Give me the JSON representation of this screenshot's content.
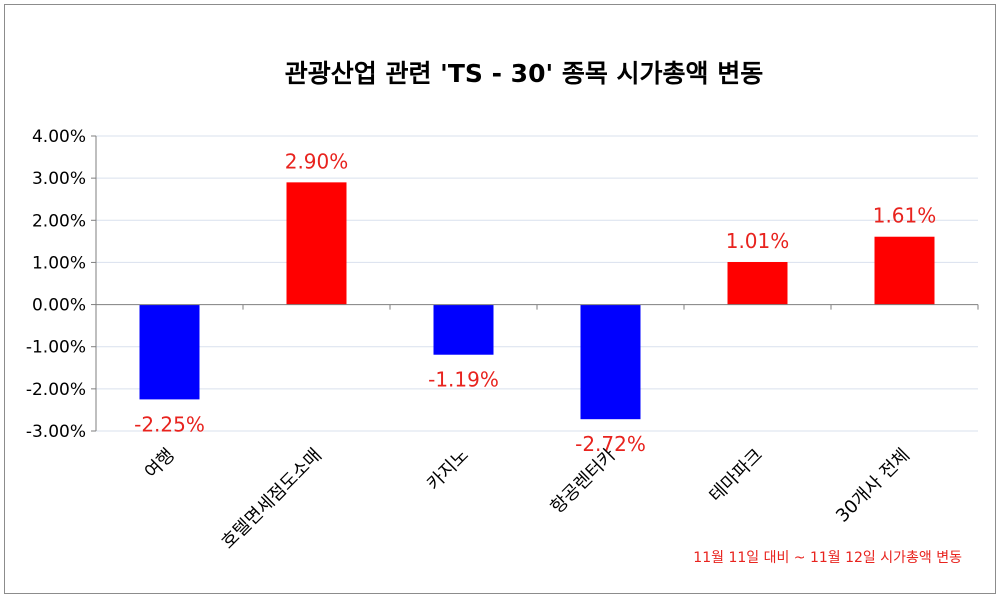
{
  "chart_data": {
    "type": "bar",
    "title": "관광산업  관련  'TS - 30' 종목 시가총액 변동",
    "categories": [
      "여행",
      "호텔면세점도소매",
      "카지노",
      "항공렌터카",
      "테마파크",
      "30개사 전체"
    ],
    "values": [
      -2.25,
      2.9,
      -1.19,
      -2.72,
      1.01,
      1.61
    ],
    "value_labels": [
      "-2.25%",
      "2.90%",
      "-1.19%",
      "-2.72%",
      "1.01%",
      "1.61%"
    ],
    "ylim": [
      -3,
      4
    ],
    "yticks": [
      4,
      3,
      2,
      1,
      0,
      -1,
      -2,
      -3
    ],
    "ytick_labels": [
      "4.00%",
      "3.00%",
      "2.00%",
      "1.00%",
      "0.00%",
      "-1.00%",
      "-2.00%",
      "-3.00%"
    ],
    "xlabel": "",
    "ylabel": "",
    "grid": true,
    "annotation": "11월 11일 대비 ~ 11월 12일 시가총액 변동",
    "colors": {
      "positive": "#ff0000",
      "negative": "#0000ff",
      "label": "#e8231e",
      "grid": "#d9e1ee",
      "axis": "#7f7f7f"
    }
  }
}
